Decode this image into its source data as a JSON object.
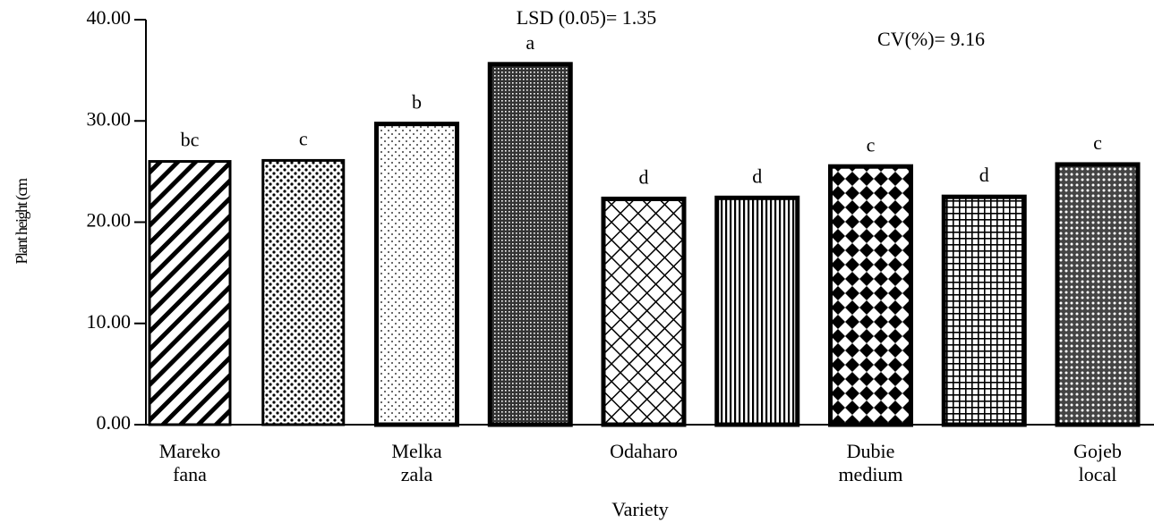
{
  "chart_data": {
    "type": "bar",
    "y_label": "Plant height (cm",
    "x_label": "Variety",
    "annotations": [
      "LSD (0.05)= 1.35",
      "CV(%)= 9.16"
    ],
    "categories": [
      "Mareko fana",
      null,
      "Melka zala",
      null,
      "Odaharo",
      null,
      "Dubie medium",
      null,
      "Gojeb local"
    ],
    "values": [
      26.0,
      26.1,
      29.7,
      35.6,
      22.3,
      22.4,
      25.5,
      22.5,
      25.7
    ],
    "letters": [
      "bc",
      "c",
      "b",
      "a",
      "d",
      "d",
      "c",
      "d",
      "c"
    ],
    "color": "#000000",
    "ylim": [
      0,
      40
    ],
    "yticks": [
      {
        "value": 0,
        "label": "0.00"
      },
      {
        "value": 10,
        "label": "10.00"
      },
      {
        "value": 20,
        "label": "20.00"
      },
      {
        "value": 30,
        "label": "30.00"
      },
      {
        "value": 40,
        "label": "40.00"
      }
    ],
    "grid": false
  }
}
